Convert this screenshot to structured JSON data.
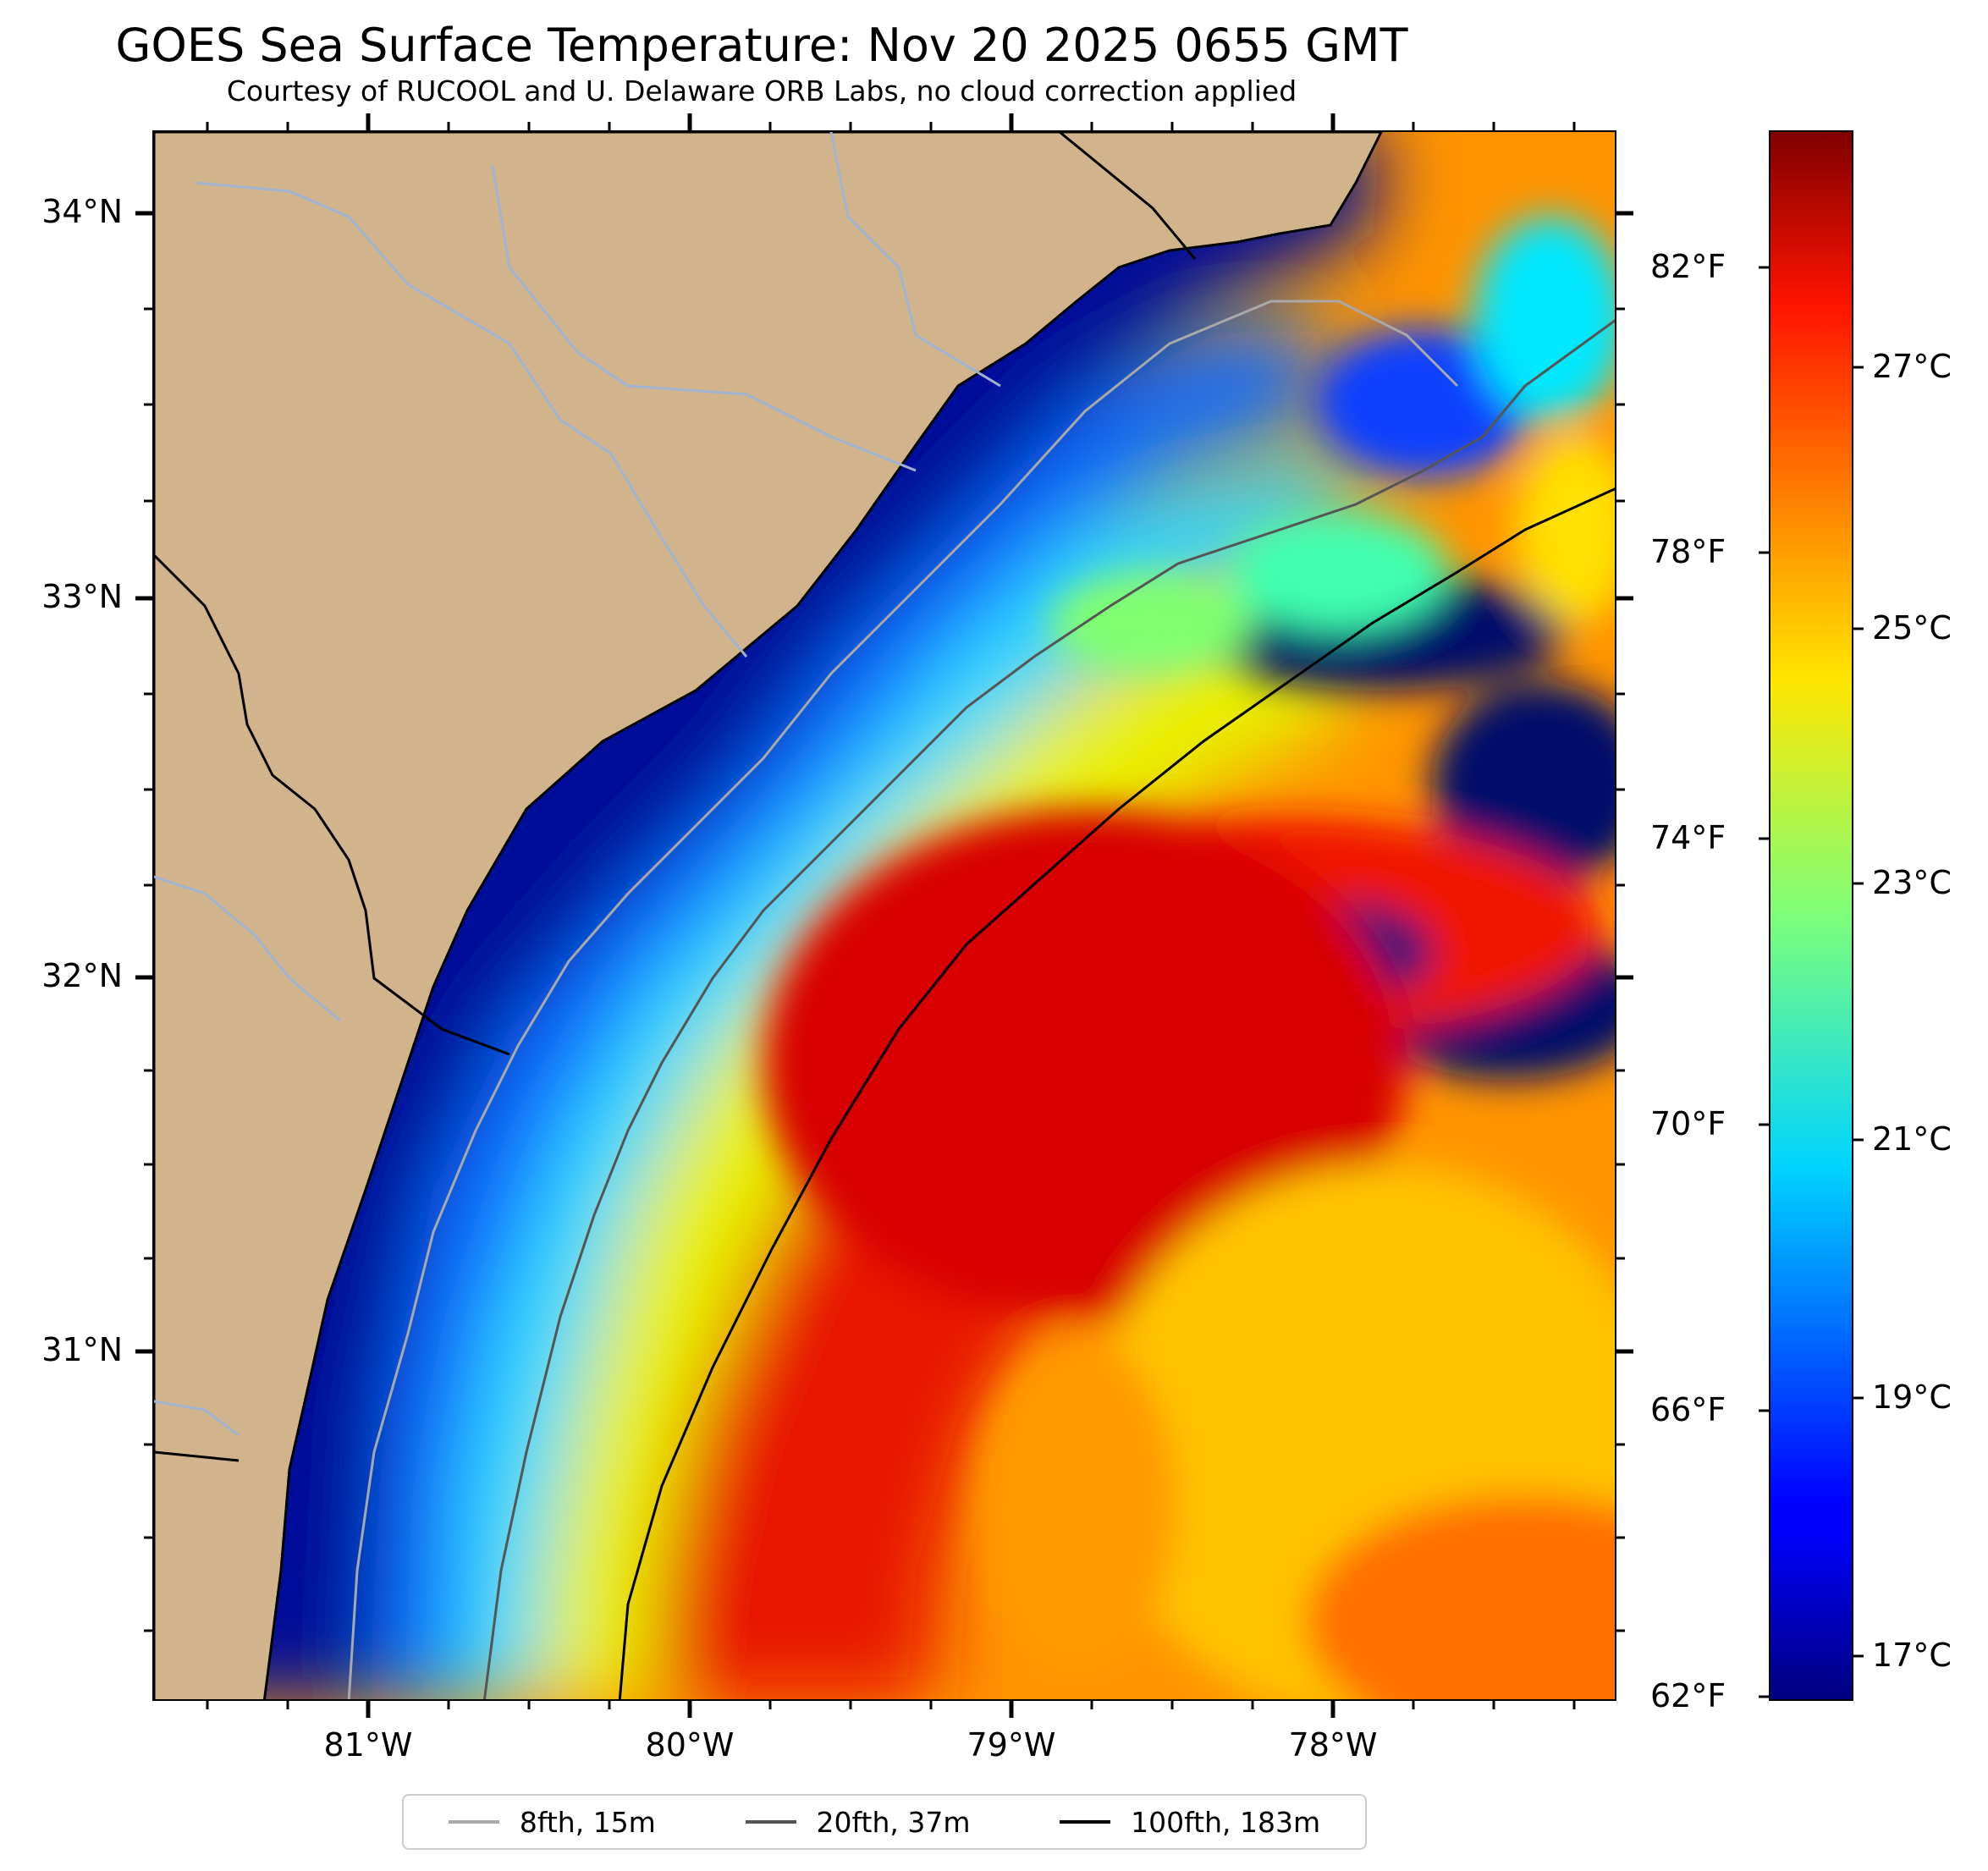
{
  "title": "GOES Sea Surface Temperature: Nov 20 2025 0655 GMT",
  "subtitle": "Courtesy of RUCOOL and U. Delaware ORB Labs, no cloud correction applied",
  "map": {
    "lat_labels": [
      "34°N",
      "33°N",
      "32°N",
      "31°N"
    ],
    "lon_labels": [
      "81°W",
      "80°W",
      "79°W",
      "78°W"
    ],
    "extent": {
      "lon": [
        -81.67,
        -77.1
      ],
      "lat": [
        30.15,
        34.22
      ]
    },
    "land_color": "#d2b48c",
    "coast_color": "#000000",
    "river_color": "#a0b4d2"
  },
  "colorbar": {
    "fahrenheit_labels": [
      "82°F",
      "78°F",
      "74°F",
      "70°F",
      "66°F",
      "62°F"
    ],
    "celsius_labels": [
      "27°C",
      "25°C",
      "23°C",
      "21°C",
      "19°C",
      "17°C"
    ],
    "colormap": "jet"
  },
  "legend": {
    "items": [
      {
        "label": "8fth, 15m",
        "color": "#a9a9a9"
      },
      {
        "label": "20fth, 37m",
        "color": "#555555"
      },
      {
        "label": "100fth, 183m",
        "color": "#000000"
      }
    ]
  }
}
